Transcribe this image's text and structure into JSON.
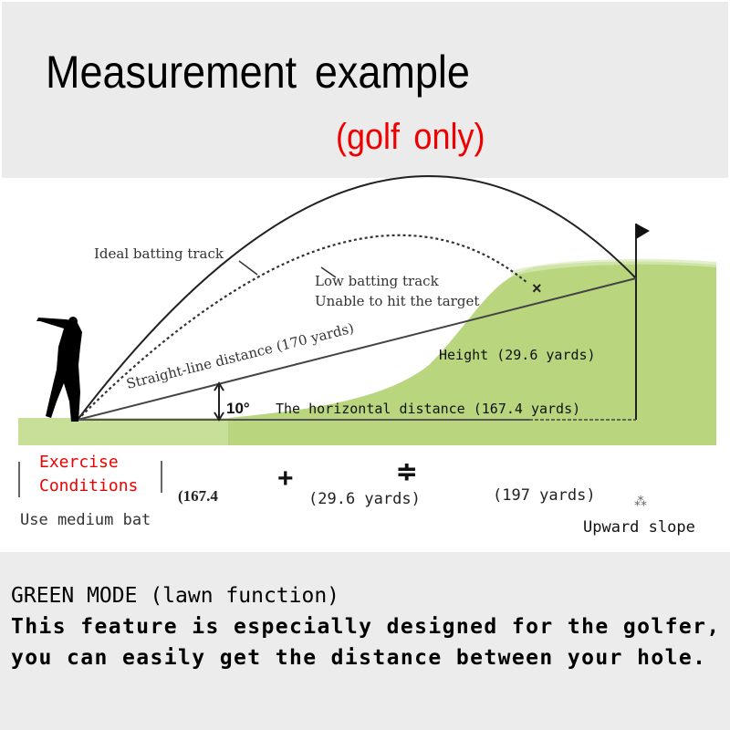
{
  "header": {
    "title": "Measurement example",
    "subtitle": "(golf only)"
  },
  "diagram": {
    "ideal_track": "Ideal batting track",
    "low_track_line1": "Low batting track",
    "low_track_line2": "Unable to hit the target",
    "miss_mark": "×",
    "straight_line": "Straight-line distance (170 yards)",
    "height": "Height (29.6 yards)",
    "angle": "10°",
    "horizontal": "The horizontal distance (167.4 yards)",
    "ground_color": "#c8df98",
    "hill_color": "#b7d57e"
  },
  "formula": {
    "conditions_line1": "Exercise",
    "conditions_line2": "Conditions",
    "term1": "(167.4",
    "plus": "+",
    "term2": "(29.6 yards)",
    "equals": "≑",
    "result": "(197 yards)",
    "note_mark": "⁂",
    "bat": "Use medium bat",
    "slope": "Upward slope"
  },
  "description": {
    "heading": "GREEN MODE (lawn function)",
    "line1": "This feature is especially designed for the golfer,",
    "line2": "you can easily get the distance between your hole."
  }
}
